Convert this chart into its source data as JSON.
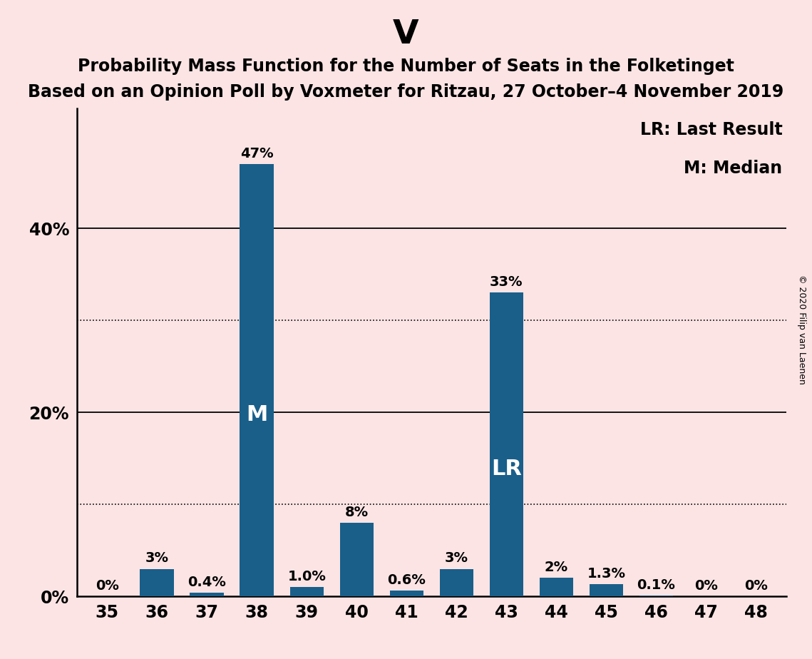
{
  "title_main": "V",
  "title_sub1": "Probability Mass Function for the Number of Seats in the Folketinget",
  "title_sub2": "Based on an Opinion Poll by Voxmeter for Ritzau, 27 October–4 November 2019",
  "copyright_text": "© 2020 Filip van Laenen",
  "seats": [
    35,
    36,
    37,
    38,
    39,
    40,
    41,
    42,
    43,
    44,
    45,
    46,
    47,
    48
  ],
  "values": [
    0.0,
    3.0,
    0.4,
    47.0,
    1.0,
    8.0,
    0.6,
    3.0,
    33.0,
    2.0,
    1.3,
    0.1,
    0.0,
    0.0
  ],
  "labels": [
    "0%",
    "3%",
    "0.4%",
    "47%",
    "1.0%",
    "8%",
    "0.6%",
    "3%",
    "33%",
    "2%",
    "1.3%",
    "0.1%",
    "0%",
    "0%"
  ],
  "bar_color": "#1a5f8a",
  "background_color": "#fce4e4",
  "median_seat": 38,
  "lr_seat": 43,
  "solid_lines": [
    20,
    40
  ],
  "dotted_lines": [
    10,
    30
  ],
  "yticks_labeled": [
    0,
    20,
    40
  ],
  "ytick_labels": [
    "0%",
    "20%",
    "40%"
  ],
  "ylim": [
    0,
    53
  ],
  "legend_lr": "LR: Last Result",
  "legend_m": "M: Median",
  "main_title_fontsize": 34,
  "sub_title_fontsize": 17,
  "tick_fontsize": 17,
  "bar_label_fontsize": 14,
  "inside_label_fontsize": 22,
  "legend_fontsize": 17,
  "copyright_fontsize": 9,
  "bar_width": 0.68
}
